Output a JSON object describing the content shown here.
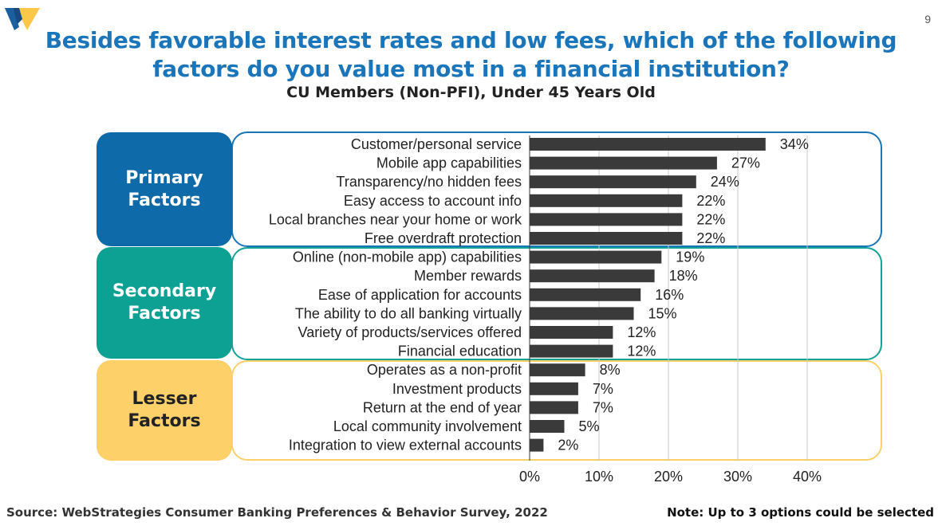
{
  "header": {
    "title_line1": "Besides favorable interest rates and low fees, which of the following",
    "title_line2": "factors do you value most in a financial institution?",
    "subtitle": "CU Members (Non-PFI), Under 45 Years Old",
    "page_number": "9"
  },
  "groups": [
    {
      "line1": "Primary",
      "line2": "Factors",
      "color": "#0e6aa8",
      "border": "#1b75bb"
    },
    {
      "line1": "Secondary",
      "line2": "Factors",
      "color": "#0ca193",
      "border": "#13a396"
    },
    {
      "line1": "Lesser",
      "line2": "Factors",
      "color": "#fdd06a",
      "border": "#fdd06a"
    }
  ],
  "chart_data": {
    "type": "bar",
    "orientation": "horizontal",
    "categories": [
      "Customer/personal service",
      "Mobile app capabilities",
      "Transparency/no hidden fees",
      "Easy access to account info",
      "Local branches near your home or work",
      "Free overdraft protection",
      "Online (non-mobile app) capabilities",
      "Member rewards",
      "Ease of application for accounts",
      "The ability to do all banking virtually",
      "Variety of products/services offered",
      "Financial education",
      "Operates as a non-profit",
      "Investment products",
      "Return at the end of year",
      "Local community involvement",
      "Integration to view external accounts"
    ],
    "values": [
      34,
      27,
      24,
      22,
      22,
      22,
      19,
      18,
      16,
      15,
      12,
      12,
      8,
      7,
      7,
      5,
      2
    ],
    "value_labels": [
      "34%",
      "27%",
      "24%",
      "22%",
      "22%",
      "22%",
      "19%",
      "18%",
      "16%",
      "15%",
      "12%",
      "12%",
      "8%",
      "7%",
      "7%",
      "5%",
      "2%"
    ],
    "group_index": [
      0,
      0,
      0,
      0,
      0,
      0,
      1,
      1,
      1,
      1,
      1,
      1,
      2,
      2,
      2,
      2,
      2
    ],
    "xticks": [
      0,
      10,
      20,
      30,
      40
    ],
    "xtick_labels": [
      "0%",
      "10%",
      "20%",
      "30%",
      "40%"
    ],
    "xlim": [
      0,
      40
    ],
    "grid": true,
    "bar_color": "#3a3a3a"
  },
  "footer": {
    "source": "Source: WebStrategies Consumer Banking Preferences & Behavior Survey, 2022",
    "note": "Note: Up to 3 options could be selected"
  }
}
